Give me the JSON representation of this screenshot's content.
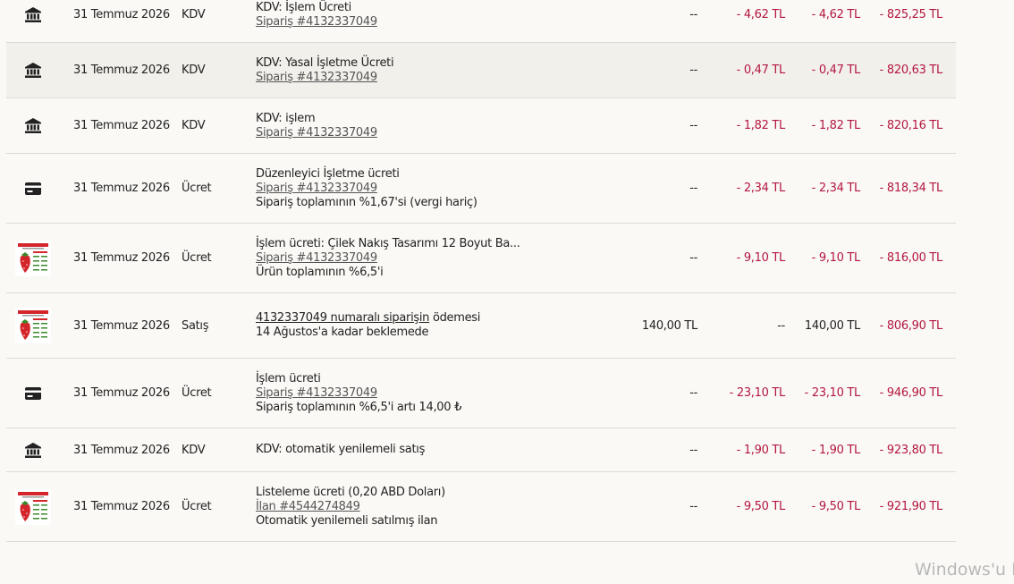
{
  "rows": [
    {
      "date": "31 Temmuz 2026",
      "type": "KDV",
      "details": [
        [
          {
            "text": "KDV: İşlem Ücreti"
          }
        ],
        [
          {
            "text": "Sipariş #4132337049",
            "underline": true
          }
        ]
      ],
      "amount": "--",
      "fees": "- 4,62 TL",
      "net": "- 4,62 TL",
      "balance": "- 825,25 TL"
    },
    {
      "date": "31 Temmuz 2026",
      "type": "KDV",
      "details": [
        [
          {
            "text": "KDV: Yasal İşletme Ücreti"
          }
        ],
        [
          {
            "text": "Sipariş #4132337049",
            "underline": true
          }
        ]
      ],
      "amount": "--",
      "fees": "- 0,47 TL",
      "net": "- 0,47 TL",
      "balance": "- 820,63 TL"
    },
    {
      "date": "31 Temmuz 2026",
      "type": "KDV",
      "details": [
        [
          {
            "text": "KDV: işlem"
          }
        ],
        [
          {
            "text": "Sipariş #4132337049",
            "underline": true
          }
        ]
      ],
      "amount": "--",
      "fees": "- 1,82 TL",
      "net": "- 1,82 TL",
      "balance": "- 820,16 TL"
    },
    {
      "date": "31 Temmuz 2026",
      "type": "Ücret",
      "details": [
        [
          {
            "text": "Düzenleyici İşletme ücreti"
          }
        ],
        [
          {
            "text": "Sipariş #4132337049",
            "underline": true
          }
        ],
        [
          {
            "text": "Sipariş toplamının %1,67'si (vergi hariç)"
          }
        ]
      ],
      "amount": "--",
      "fees": "- 2,34 TL",
      "net": "- 2,34 TL",
      "balance": "- 818,34 TL"
    },
    {
      "date": "31 Temmuz 2026",
      "type": "Ücret",
      "details": [
        [
          {
            "text": "İşlem ücreti: Çilek Nakış Tasarımı 12 Boyut Ba..."
          }
        ],
        [
          {
            "text": "Sipariş #4132337049",
            "underline": true
          }
        ],
        [
          {
            "text": "Ürün toplamının %6,5'i"
          }
        ]
      ],
      "amount": "--",
      "fees": "- 9,10 TL",
      "net": "- 9,10 TL",
      "balance": "- 816,00 TL"
    },
    {
      "date": "31 Temmuz 2026",
      "type": "Satış",
      "details": [
        [
          {
            "text": "4132337049 numaralı siparişin",
            "underline": true
          },
          {
            "text": " ödemesi"
          }
        ],
        [
          {
            "text": "14 Ağustos'a kadar beklemede"
          }
        ]
      ],
      "amount": "140,00 TL",
      "fees": "--",
      "net": "140,00 TL",
      "balance": "- 806,90 TL"
    },
    {
      "date": "31 Temmuz 2026",
      "type": "Ücret",
      "details": [
        [
          {
            "text": "İşlem ücreti"
          }
        ],
        [
          {
            "text": "Sipariş #4132337049",
            "underline": true
          }
        ],
        [
          {
            "text": "Sipariş toplamının %6,5'i artı 14,00 ₺"
          }
        ]
      ],
      "amount": "--",
      "fees": "- 23,10 TL",
      "net": "- 23,10 TL",
      "balance": "- 946,90 TL"
    },
    {
      "date": "31 Temmuz 2026",
      "type": "KDV",
      "details": [
        [
          {
            "text": "KDV: otomatik yenilemeli satış"
          }
        ]
      ],
      "amount": "--",
      "fees": "- 1,90 TL",
      "net": "- 1,90 TL",
      "balance": "- 923,80 TL"
    },
    {
      "date": "31 Temmuz 2026",
      "type": "Ücret",
      "details": [
        [
          {
            "text": "Listeleme ücreti (0,20 ABD Doları)"
          }
        ],
        [
          {
            "text": "İlan #4544274849",
            "underline": true
          }
        ],
        [
          {
            "text": "Otomatik yenilemeli satılmış ilan"
          }
        ]
      ],
      "amount": "--",
      "fees": "- 9,50 TL",
      "net": "- 9,50 TL",
      "balance": "- 921,90 TL"
    }
  ],
  "watermark": "Windows'u E"
}
